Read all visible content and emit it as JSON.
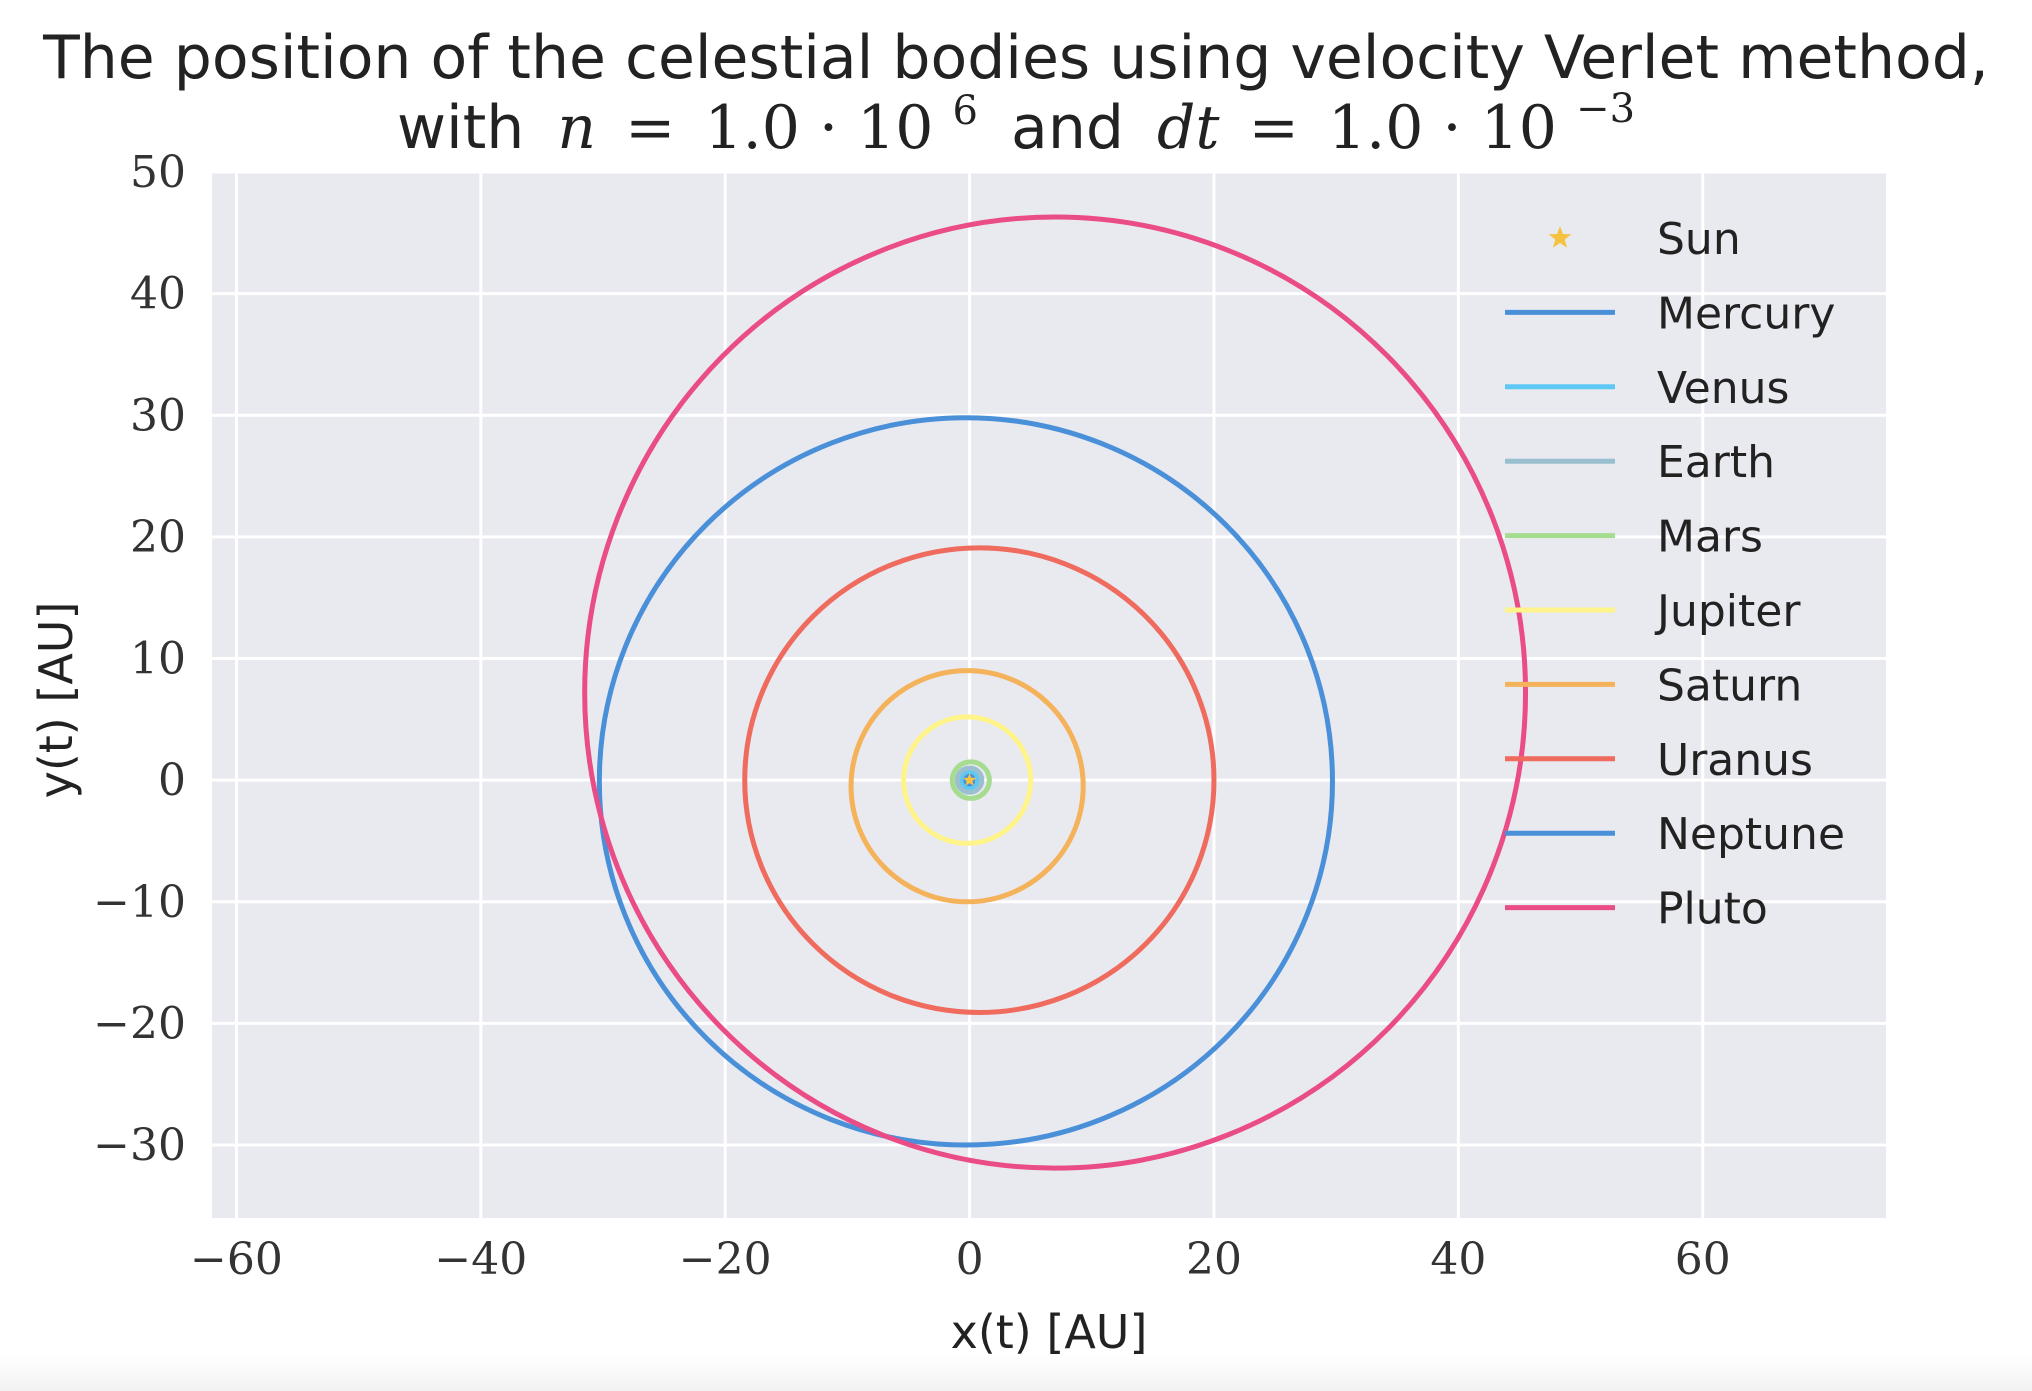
{
  "chart_data": {
    "type": "line",
    "title_line1": "The position of the celestial bodies using velocity Verlet method,",
    "title_line2": {
      "prefix": "with",
      "n_symbol": "n",
      "n_value": "1.0 · 10",
      "n_exponent": "6",
      "joiner": "and",
      "dt_symbol": "dt",
      "dt_value": "1.0 · 10",
      "dt_exponent": "−3"
    },
    "xlabel": "x(t) [AU]",
    "ylabel": "y(t) [AU]",
    "xlim": [
      -62,
      75
    ],
    "ylim": [
      -36,
      50
    ],
    "xticks": [
      -60,
      -40,
      -20,
      0,
      20,
      40,
      60
    ],
    "xtick_labels": [
      "−60",
      "−40",
      "−20",
      "0",
      "20",
      "40",
      "60"
    ],
    "yticks": [
      -30,
      -20,
      -10,
      0,
      10,
      20,
      30,
      40,
      50
    ],
    "ytick_labels": [
      "−30",
      "−20",
      "−10",
      "0",
      "10",
      "20",
      "30",
      "40",
      "50"
    ],
    "grid": true,
    "background": "#e9e9f0",
    "legend_position": "upper right",
    "series": [
      {
        "name": "Sun",
        "kind": "marker",
        "marker": "star",
        "color": "#f5c242",
        "center": [
          0,
          0
        ]
      },
      {
        "name": "Mercury",
        "kind": "orbit",
        "color": "#4a90d9",
        "center": [
          -0.1,
          0
        ],
        "rx": 0.39,
        "ry": 0.38
      },
      {
        "name": "Venus",
        "kind": "orbit",
        "color": "#5ec8f5",
        "center": [
          0,
          0
        ],
        "rx": 0.72,
        "ry": 0.72
      },
      {
        "name": "Earth",
        "kind": "orbit",
        "color": "#9abfcf",
        "center": [
          0,
          0
        ],
        "rx": 1.0,
        "ry": 1.0
      },
      {
        "name": "Mars",
        "kind": "orbit",
        "color": "#a5dc8f",
        "center": [
          0.1,
          0
        ],
        "rx": 1.52,
        "ry": 1.5
      },
      {
        "name": "Jupiter",
        "kind": "orbit",
        "color": "#fff48a",
        "center": [
          -0.2,
          0
        ],
        "rx": 5.2,
        "ry": 5.2
      },
      {
        "name": "Saturn",
        "kind": "orbit",
        "color": "#f4b25a",
        "center": [
          -0.2,
          -0.5
        ],
        "rx": 9.5,
        "ry": 9.5
      },
      {
        "name": "Uranus",
        "kind": "orbit",
        "color": "#ee6b5e",
        "center": [
          0.8,
          0
        ],
        "rx": 19.2,
        "ry": 19.1
      },
      {
        "name": "Neptune",
        "kind": "orbit",
        "color": "#4a90d9",
        "center": [
          -0.3,
          -0.1
        ],
        "rx": 30.0,
        "ry": 29.9
      },
      {
        "name": "Pluto",
        "kind": "orbit",
        "color": "#ea4c86",
        "center": [
          7.0,
          7.2
        ],
        "rx": 38.5,
        "ry": 39.1
      }
    ]
  }
}
